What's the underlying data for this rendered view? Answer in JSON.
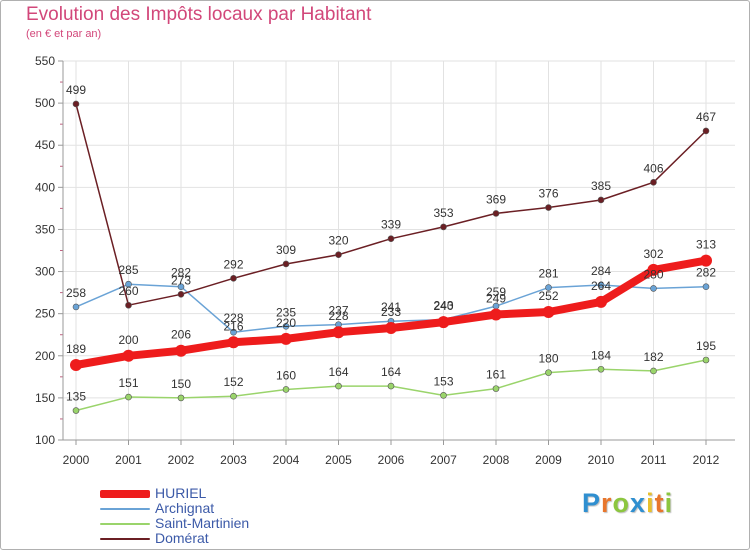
{
  "header": {
    "title": "Evolution des Impôts locaux par Habitant",
    "subtitle": "(en € et par an)"
  },
  "brand": {
    "letters": [
      "P",
      "r",
      "o",
      "x",
      "i",
      "t",
      "i"
    ],
    "colors": [
      "#2f8fd0",
      "#e8762c",
      "#8cc63f",
      "#2f8fd0",
      "#e8c02c",
      "#e8762c",
      "#8cc63f"
    ]
  },
  "chart_data": {
    "type": "line",
    "title": "Evolution des Impôts locaux par Habitant",
    "subtitle": "(en € et par an)",
    "xlabel": "",
    "ylabel": "",
    "x": [
      2000,
      2001,
      2002,
      2003,
      2004,
      2005,
      2006,
      2007,
      2008,
      2009,
      2010,
      2011,
      2012
    ],
    "x_tick_labels": [
      "2000",
      "2001",
      "2002",
      "2003",
      "2004",
      "2005",
      "2006",
      "2007",
      "2008",
      "2009",
      "2010",
      "2011",
      "2012"
    ],
    "ylim": [
      100,
      550
    ],
    "y_ticks": [
      100,
      150,
      200,
      250,
      300,
      350,
      400,
      450,
      500,
      550
    ],
    "y_tick_labels": [
      "100",
      "150",
      "200",
      "250",
      "300",
      "350",
      "400",
      "450",
      "500",
      "550"
    ],
    "grid": true,
    "legend_position": "bottom-left",
    "series": [
      {
        "name": "Saint-Martinien",
        "color": "#9ad46b",
        "values": [
          135,
          151,
          150,
          152,
          160,
          164,
          164,
          153,
          161,
          180,
          184,
          182,
          195
        ],
        "labels": [
          "135",
          "151",
          "150",
          "152",
          "160",
          "164",
          "164",
          "153",
          "161",
          "180",
          "184",
          "182",
          "195"
        ]
      },
      {
        "name": "Archignat",
        "color": "#6aa3d6",
        "values": [
          258,
          285,
          282,
          228,
          235,
          237,
          241,
          243,
          259,
          281,
          284,
          280,
          282
        ],
        "labels": [
          "258",
          "285",
          "282",
          "228",
          "235",
          "237",
          "241",
          "243",
          "259",
          "281",
          "284",
          "280",
          "282"
        ]
      },
      {
        "name": "Domérat",
        "color": "#6b1f24",
        "values": [
          499,
          260,
          273,
          292,
          309,
          320,
          339,
          353,
          369,
          376,
          385,
          406,
          467
        ],
        "labels": [
          "499",
          "260",
          "273",
          "292",
          "309",
          "320",
          "339",
          "353",
          "369",
          "376",
          "385",
          "406",
          "467"
        ]
      },
      {
        "name": "HURIEL",
        "color": "#ee1c1c",
        "values": [
          189,
          200,
          206,
          216,
          220,
          228,
          233,
          240,
          249,
          252,
          264,
          302,
          313
        ],
        "labels": [
          "189",
          "200",
          "206",
          "216",
          "220",
          "228",
          "233",
          "240",
          "249",
          "252",
          "264",
          "302",
          "313"
        ]
      }
    ]
  },
  "legend": {
    "items": [
      {
        "label": "HURIEL",
        "color": "#ee1c1c",
        "thickness": 8
      },
      {
        "label": "Archignat",
        "color": "#6aa3d6",
        "thickness": 2
      },
      {
        "label": "Saint-Martinien",
        "color": "#9ad46b",
        "thickness": 2
      },
      {
        "label": "Domérat",
        "color": "#6b1f24",
        "thickness": 2
      }
    ]
  }
}
